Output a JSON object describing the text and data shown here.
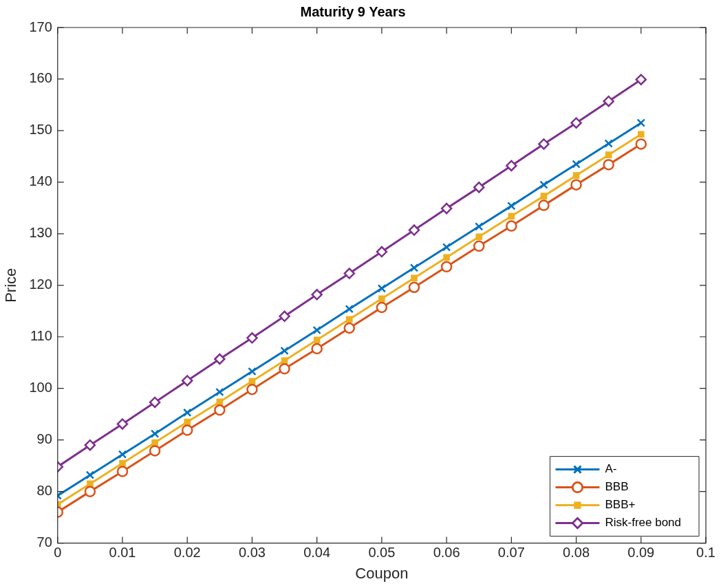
{
  "chart_data": {
    "type": "line",
    "title": "Maturity 9 Years",
    "xlabel": "Coupon",
    "ylabel": "Price",
    "x": [
      0,
      0.005,
      0.01,
      0.015,
      0.02,
      0.025,
      0.03,
      0.035,
      0.04,
      0.045,
      0.05,
      0.055,
      0.06,
      0.065,
      0.07,
      0.075,
      0.08,
      0.085,
      0.09
    ],
    "series": [
      {
        "name": "A-",
        "color": "#0072bd",
        "marker": "cross",
        "values": [
          79.2,
          83.2,
          87.2,
          91.2,
          95.3,
          99.3,
          103.3,
          107.3,
          111.3,
          115.4,
          119.4,
          123.4,
          127.4,
          131.4,
          135.4,
          139.5,
          143.5,
          147.5,
          151.5
        ]
      },
      {
        "name": "BBB",
        "color": "#d95319",
        "marker": "circle",
        "values": [
          76.0,
          80.0,
          83.9,
          87.9,
          91.9,
          95.8,
          99.8,
          103.8,
          107.7,
          111.7,
          115.7,
          119.6,
          123.6,
          127.6,
          131.5,
          135.5,
          139.5,
          143.4,
          147.4
        ]
      },
      {
        "name": "BBB+",
        "color": "#edb120",
        "marker": "square",
        "values": [
          77.5,
          81.5,
          85.5,
          89.5,
          93.5,
          97.4,
          101.4,
          105.4,
          109.4,
          113.4,
          117.4,
          121.4,
          125.4,
          129.4,
          133.4,
          137.3,
          141.3,
          145.3,
          149.3
        ]
      },
      {
        "name": "Risk-free bond",
        "color": "#7e2f8e",
        "marker": "diamond",
        "values": [
          84.8,
          89.0,
          93.1,
          97.3,
          101.5,
          105.7,
          109.8,
          114.0,
          118.2,
          122.3,
          126.5,
          130.7,
          134.9,
          139.0,
          143.2,
          147.4,
          151.5,
          155.7,
          159.9
        ]
      }
    ],
    "xlim": [
      0,
      0.1
    ],
    "xticks": [
      0,
      0.01,
      0.02,
      0.03,
      0.04,
      0.05,
      0.06,
      0.07,
      0.08,
      0.09,
      0.1
    ],
    "ylim": [
      70,
      170
    ],
    "yticks": [
      70,
      80,
      90,
      100,
      110,
      120,
      130,
      140,
      150,
      160,
      170
    ],
    "grid": false,
    "legend": "bottom right",
    "line_style": "solid"
  }
}
